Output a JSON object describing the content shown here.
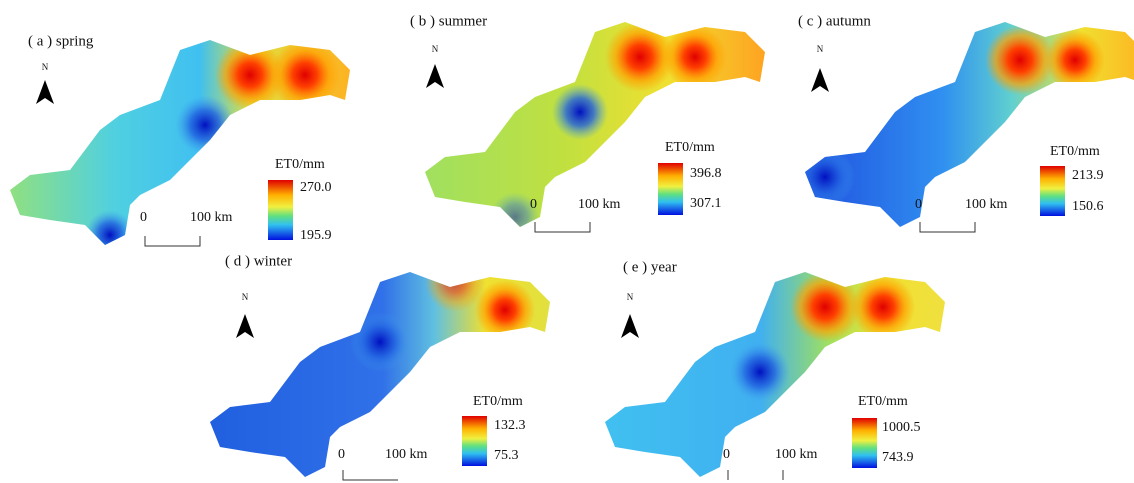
{
  "panels": [
    {
      "label": "( a ) spring",
      "north": "N",
      "legend_title": "ET0/mm",
      "legend_max": "270.0",
      "legend_min": "195.9",
      "scale_start": "0",
      "scale_end": "100 km"
    },
    {
      "label": "( b ) summer",
      "north": "N",
      "legend_title": "ET0/mm",
      "legend_max": "396.8",
      "legend_min": "307.1",
      "scale_start": "0",
      "scale_end": "100 km"
    },
    {
      "label": "( c ) autumn",
      "north": "N",
      "legend_title": "ET0/mm",
      "legend_max": "213.9",
      "legend_min": "150.6",
      "scale_start": "0",
      "scale_end": "100 km"
    },
    {
      "label": "( d ) winter",
      "north": "N",
      "legend_title": "ET0/mm",
      "legend_max": "132.3",
      "legend_min": "75.3",
      "scale_start": "0",
      "scale_end": "100 km"
    },
    {
      "label": "( e ) year",
      "north": "N",
      "legend_title": "ET0/mm",
      "legend_max": "1000.5",
      "legend_min": "743.9",
      "scale_start": "0",
      "scale_end": "100 km"
    }
  ]
}
